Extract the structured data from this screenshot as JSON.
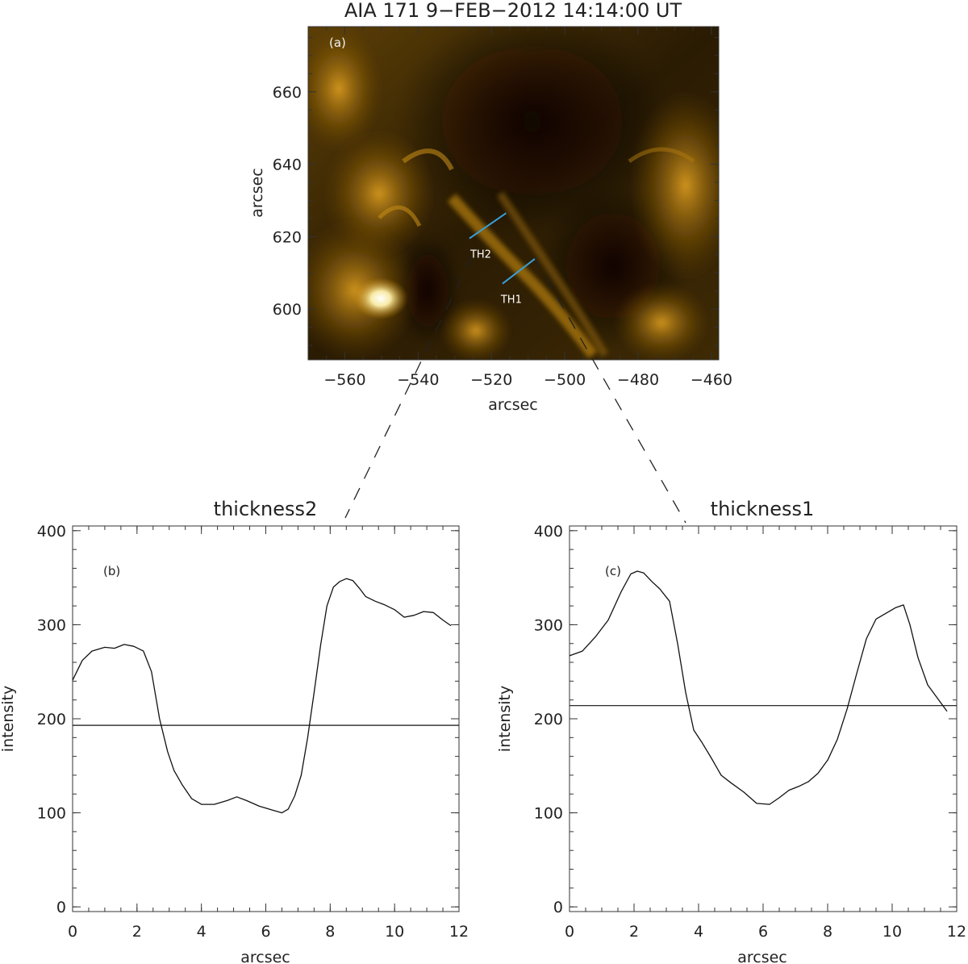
{
  "chart_data": [
    {
      "id": "a",
      "type": "image",
      "title": "AIA 171 9−FEB−2012 14:14:00 UT",
      "panel_label": "(a)",
      "xlabel": "arcsec",
      "ylabel": "arcsec",
      "xlim": [
        -570,
        -458
      ],
      "ylim": [
        586,
        678
      ],
      "xticks": [
        -560,
        -540,
        -520,
        -500,
        -480,
        -460
      ],
      "yticks": [
        600,
        620,
        640,
        660
      ],
      "cuts": [
        {
          "label": "TH2",
          "from": [
            -526,
            619.5
          ],
          "to": [
            -516,
            626.5
          ],
          "color": "#3aa0d8"
        },
        {
          "label": "TH1",
          "from": [
            -517,
            607
          ],
          "to": [
            -508,
            614
          ],
          "color": "#3aa0d8"
        }
      ],
      "grid": false
    },
    {
      "id": "b",
      "type": "line",
      "title": "thickness2",
      "panel_label": "(b)",
      "xlabel": "arcsec",
      "ylabel": "intensity",
      "xlim": [
        0,
        12
      ],
      "ylim": [
        -5,
        405
      ],
      "xticks": [
        0,
        2,
        4,
        6,
        8,
        10,
        12
      ],
      "yticks": [
        0,
        100,
        200,
        300,
        400
      ],
      "threshold": 193,
      "x": [
        0,
        0.3,
        0.6,
        1.0,
        1.3,
        1.6,
        1.9,
        2.2,
        2.45,
        2.7,
        2.95,
        3.15,
        3.4,
        3.7,
        4.0,
        4.4,
        4.8,
        5.1,
        5.4,
        5.8,
        6.2,
        6.5,
        6.7,
        6.9,
        7.1,
        7.3,
        7.5,
        7.7,
        7.9,
        8.1,
        8.3,
        8.5,
        8.7,
        8.9,
        9.1,
        9.4,
        9.7,
        10.0,
        10.3,
        10.6,
        10.9,
        11.2,
        11.5,
        11.75
      ],
      "y": [
        241,
        262,
        272,
        276,
        275,
        279,
        277,
        272,
        250,
        200,
        165,
        145,
        130,
        115,
        109,
        109,
        113,
        117,
        113,
        107,
        103,
        100,
        104,
        118,
        140,
        180,
        228,
        278,
        320,
        340,
        346,
        349,
        347,
        339,
        330,
        325,
        321,
        316,
        308,
        310,
        314,
        313,
        305,
        299
      ],
      "grid": false
    },
    {
      "id": "c",
      "type": "line",
      "title": "thickness1",
      "panel_label": "(c)",
      "xlabel": "arcsec",
      "ylabel": "intensity",
      "xlim": [
        0,
        12
      ],
      "ylim": [
        -5,
        405
      ],
      "xticks": [
        0,
        2,
        4,
        6,
        8,
        10,
        12
      ],
      "yticks": [
        0,
        100,
        200,
        300,
        400
      ],
      "threshold": 214,
      "x": [
        0,
        0.4,
        0.8,
        1.2,
        1.6,
        1.9,
        2.1,
        2.3,
        2.55,
        2.8,
        3.1,
        3.35,
        3.6,
        3.85,
        4.1,
        4.4,
        4.7,
        5.0,
        5.4,
        5.8,
        6.2,
        6.5,
        6.8,
        7.1,
        7.4,
        7.7,
        8.0,
        8.3,
        8.6,
        8.9,
        9.2,
        9.5,
        9.8,
        10.1,
        10.35,
        10.55,
        10.8,
        11.1,
        11.4,
        11.7
      ],
      "y": [
        267,
        272,
        287,
        305,
        335,
        354,
        357,
        355,
        346,
        338,
        325,
        280,
        228,
        188,
        175,
        158,
        140,
        132,
        122,
        110,
        109,
        116,
        124,
        128,
        133,
        142,
        156,
        178,
        210,
        248,
        285,
        306,
        312,
        318,
        321,
        300,
        265,
        236,
        222,
        208
      ],
      "grid": false
    }
  ]
}
